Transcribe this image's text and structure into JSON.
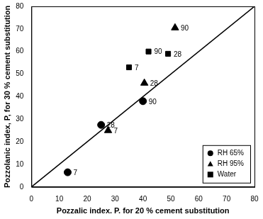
{
  "chart_data": {
    "type": "scatter",
    "x_label": "Pozzalic index. P. for 20 % cement substitution",
    "y_label": "Pozzolanic index, P, for 30 % cement substitution",
    "xlim": [
      0,
      80
    ],
    "xticks": [
      0,
      10,
      20,
      30,
      40,
      50,
      60,
      70,
      80
    ],
    "ylim": [
      0,
      80
    ],
    "yticks": [
      0,
      10,
      20,
      30,
      40,
      50,
      60,
      70,
      80
    ],
    "grid": false,
    "legend": "lower right",
    "reference_line": {
      "x": [
        0,
        80
      ],
      "y": [
        0,
        80
      ],
      "color": "#000000"
    },
    "series": [
      {
        "name": "RH 65%",
        "color": "#000000",
        "marker": "circle",
        "x": [
          13,
          25,
          40
        ],
        "values": [
          6.5,
          27.5,
          38
        ],
        "point_labels": [
          7,
          28,
          90
        ]
      },
      {
        "name": "RH 95%",
        "color": "#000000",
        "marker": "triangle",
        "x": [
          27.5,
          40.5,
          51.5
        ],
        "values": [
          25,
          46,
          70.5
        ],
        "point_labels": [
          7,
          28,
          90
        ]
      },
      {
        "name": "Water",
        "color": "#000000",
        "marker": "square",
        "x": [
          35,
          42,
          49
        ],
        "values": [
          53,
          60,
          59
        ],
        "point_labels": [
          7,
          90,
          28
        ]
      }
    ]
  }
}
